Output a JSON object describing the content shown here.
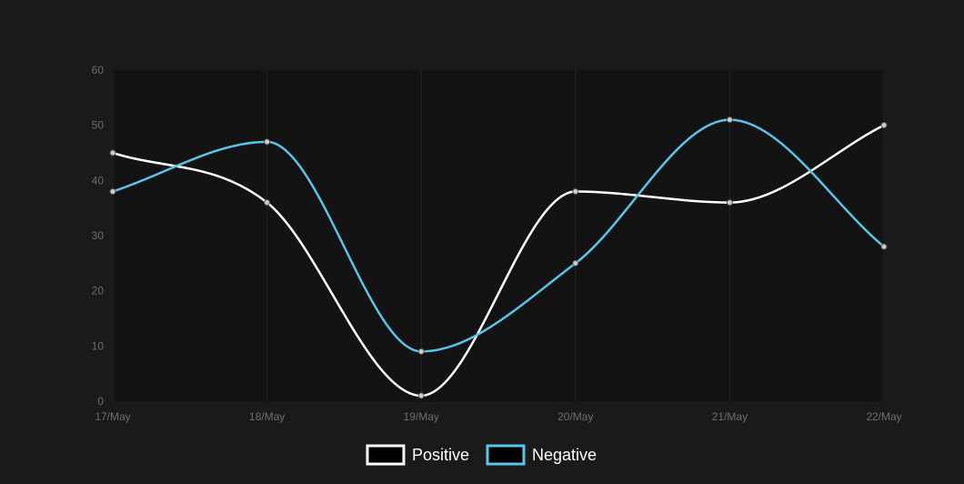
{
  "colors": {
    "background": "#1a1a1a",
    "plot_area": "#131313",
    "gridline": "#222222",
    "positive": "#ffffff",
    "negative": "#5bc4e8",
    "point_fill": "#cccccc",
    "point_stroke": "#555555",
    "tick_text": "#6e6e6e",
    "legend_text": "#ffffff"
  },
  "chart_data": {
    "type": "line",
    "title": "",
    "xlabel": "",
    "ylabel": "",
    "categories": [
      "17/May",
      "18/May",
      "19/May",
      "20/May",
      "21/May",
      "22/May"
    ],
    "ylim": [
      0,
      60
    ],
    "yticks": [
      "0",
      "10",
      "20",
      "30",
      "40",
      "50",
      "60"
    ],
    "grid": "vertical",
    "legend_position": "bottom-center",
    "smooth": true,
    "series": [
      {
        "name": "Positive",
        "color": "#ffffff",
        "values": [
          45,
          36,
          1,
          38,
          36,
          50
        ]
      },
      {
        "name": "Negative",
        "color": "#5bc4e8",
        "values": [
          38,
          47,
          9,
          25,
          51,
          28
        ]
      }
    ]
  }
}
